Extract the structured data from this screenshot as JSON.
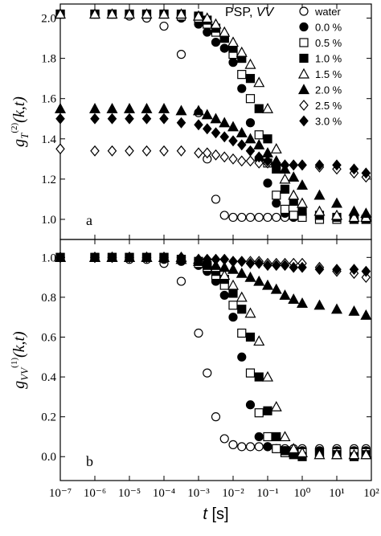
{
  "chart_data": [
    {
      "type": "scatter",
      "annotation": "a",
      "xscale": "log",
      "ylabel": {
        "base": "g",
        "sup": "(2)",
        "sub": "T",
        "args": "(k,t)"
      },
      "legend_title": "PSP, ",
      "legend_title_italic": "VV",
      "legend": "upper right",
      "xlim": [
        1e-07,
        100
      ],
      "ylim": [
        0.9,
        2.07
      ],
      "yticks": [
        {
          "value": 1,
          "label": "1.0"
        },
        1.2,
        1.4,
        1.6,
        1.8,
        {
          "value": 2,
          "label": "2.0"
        }
      ],
      "x": [
        1e-07,
        1e-06,
        3.16e-06,
        1e-05,
        3.16e-05,
        0.0001,
        0.000316,
        0.001,
        0.00178,
        0.00316,
        0.00562,
        0.01,
        0.0178,
        0.0316,
        0.0562,
        0.1,
        0.178,
        0.316,
        0.562,
        1,
        3.16,
        10,
        31.6,
        70
      ],
      "series": [
        {
          "name": "water",
          "marker": "circle",
          "filled": false,
          "color": "#000000",
          "values": [
            2.02,
            2.02,
            2.02,
            2.01,
            2.0,
            1.96,
            1.82,
            1.53,
            1.3,
            1.1,
            1.02,
            1.01,
            1.01,
            1.01,
            1.01,
            1.01,
            1.01,
            1.01,
            1.01,
            1.01,
            1.01,
            1.01,
            1.01,
            1.01
          ]
        },
        {
          "name": "0.0 %",
          "marker": "circle",
          "filled": true,
          "color": "#000000",
          "values": [
            2.02,
            2.02,
            2.02,
            2.02,
            2.02,
            2.02,
            2.0,
            1.97,
            1.93,
            1.88,
            1.85,
            1.78,
            1.65,
            1.48,
            1.3,
            1.18,
            1.08,
            1.03,
            1.01,
            1.01,
            1.0,
            1.0,
            1.0,
            1.0
          ]
        },
        {
          "name": "0.5 %",
          "marker": "square",
          "filled": false,
          "color": "#000000",
          "values": [
            2.02,
            2.02,
            2.02,
            2.02,
            2.02,
            2.02,
            2.01,
            2.0,
            1.97,
            1.93,
            1.9,
            1.82,
            1.72,
            1.6,
            1.42,
            1.28,
            1.12,
            1.05,
            1.02,
            1.01,
            1.0,
            1.0,
            1.0,
            1.0
          ]
        },
        {
          "name": "1.0 %",
          "marker": "square",
          "filled": true,
          "color": "#000000",
          "values": [
            2.02,
            2.02,
            2.02,
            2.02,
            2.02,
            2.02,
            2.02,
            2.01,
            1.99,
            1.95,
            1.9,
            1.85,
            1.8,
            1.7,
            1.55,
            1.4,
            1.25,
            1.15,
            1.09,
            1.04,
            1.02,
            1.01,
            1.0,
            1.0
          ]
        },
        {
          "name": "1.5 %",
          "marker": "triangle",
          "filled": false,
          "color": "#000000",
          "values": [
            2.02,
            2.02,
            2.02,
            2.02,
            2.02,
            2.02,
            2.02,
            2.01,
            2.0,
            1.97,
            1.93,
            1.88,
            1.83,
            1.77,
            1.68,
            1.55,
            1.35,
            1.2,
            1.12,
            1.08,
            1.04,
            1.02,
            1.01,
            1.01
          ]
        },
        {
          "name": "2.0 %",
          "marker": "triangle",
          "filled": true,
          "color": "#000000",
          "values": [
            1.55,
            1.55,
            1.55,
            1.55,
            1.55,
            1.55,
            1.54,
            1.54,
            1.52,
            1.5,
            1.48,
            1.46,
            1.43,
            1.4,
            1.37,
            1.33,
            1.29,
            1.25,
            1.21,
            1.17,
            1.12,
            1.08,
            1.04,
            1.03
          ]
        },
        {
          "name": "2.5 %",
          "marker": "diamond",
          "filled": false,
          "color": "#000000",
          "values": [
            1.35,
            1.34,
            1.34,
            1.34,
            1.34,
            1.34,
            1.34,
            1.33,
            1.33,
            1.32,
            1.31,
            1.3,
            1.29,
            1.29,
            1.28,
            1.28,
            1.28,
            1.27,
            1.27,
            1.27,
            1.26,
            1.25,
            1.23,
            1.21
          ]
        },
        {
          "name": "3.0 %",
          "marker": "diamond",
          "filled": true,
          "color": "#000000",
          "values": [
            1.5,
            1.5,
            1.5,
            1.5,
            1.5,
            1.5,
            1.48,
            1.47,
            1.45,
            1.43,
            1.41,
            1.39,
            1.37,
            1.34,
            1.31,
            1.29,
            1.28,
            1.27,
            1.27,
            1.27,
            1.27,
            1.27,
            1.25,
            1.23
          ]
        }
      ]
    },
    {
      "type": "scatter",
      "annotation": "b",
      "xscale": "log",
      "ylabel": {
        "base": "g",
        "sup": "(1)",
        "sub": "VV",
        "args": "(k,t)"
      },
      "xlabel": "t",
      "xlabel_unit": " [s]",
      "xlim": [
        1e-07,
        100
      ],
      "ylim": [
        -0.12,
        1.09
      ],
      "xticks": [
        {
          "value": 1e-07,
          "label": "10⁻⁷"
        },
        {
          "value": 1e-06,
          "label": "10⁻⁶"
        },
        {
          "value": 1e-05,
          "label": "10⁻⁵"
        },
        {
          "value": 0.0001,
          "label": "10⁻⁴"
        },
        {
          "value": 0.001,
          "label": "10⁻³"
        },
        {
          "value": 0.01,
          "label": "10⁻²"
        },
        {
          "value": 0.1,
          "label": "10⁻¹"
        },
        {
          "value": 1,
          "label": "10⁰"
        },
        {
          "value": 10,
          "label": "10¹"
        },
        {
          "value": 100,
          "label": "10²"
        }
      ],
      "yticks": [
        {
          "value": 0,
          "label": "0.0"
        },
        0.2,
        0.4,
        0.6,
        0.8,
        {
          "value": 1,
          "label": "1.0"
        }
      ],
      "x": [
        1e-07,
        1e-06,
        3.16e-06,
        1e-05,
        3.16e-05,
        0.0001,
        0.000316,
        0.001,
        0.00178,
        0.00316,
        0.00562,
        0.01,
        0.0178,
        0.0316,
        0.0562,
        0.1,
        0.178,
        0.316,
        0.562,
        1,
        3.16,
        10,
        31.6,
        70
      ],
      "series": [
        {
          "name": "water",
          "marker": "circle",
          "filled": false,
          "color": "#000000",
          "values": [
            1.0,
            1.0,
            1.0,
            0.99,
            0.99,
            0.97,
            0.88,
            0.62,
            0.42,
            0.2,
            0.09,
            0.06,
            0.05,
            0.05,
            0.05,
            0.05,
            0.04,
            0.04,
            0.04,
            0.04,
            0.04,
            0.04,
            0.04,
            0.04
          ]
        },
        {
          "name": "0.0 %",
          "marker": "circle",
          "filled": true,
          "color": "#000000",
          "values": [
            1.0,
            1.0,
            1.0,
            1.0,
            1.0,
            0.99,
            0.98,
            0.96,
            0.93,
            0.88,
            0.81,
            0.7,
            0.5,
            0.26,
            0.1,
            0.05,
            0.04,
            0.03,
            0.03,
            0.03,
            0.03,
            0.03,
            0.03,
            0.03
          ]
        },
        {
          "name": "0.5 %",
          "marker": "square",
          "filled": false,
          "color": "#000000",
          "values": [
            1.0,
            1.0,
            1.0,
            1.0,
            1.0,
            1.0,
            0.99,
            0.97,
            0.95,
            0.91,
            0.86,
            0.76,
            0.62,
            0.42,
            0.22,
            0.1,
            0.04,
            0.02,
            0.02,
            0.02,
            0.02,
            0.02,
            0.02,
            0.02
          ]
        },
        {
          "name": "1.0 %",
          "marker": "square",
          "filled": true,
          "color": "#000000",
          "values": [
            1.0,
            1.0,
            1.0,
            1.0,
            1.0,
            1.0,
            0.99,
            0.98,
            0.96,
            0.93,
            0.89,
            0.82,
            0.74,
            0.6,
            0.4,
            0.23,
            0.1,
            0.03,
            0.01,
            0.0,
            0.02,
            0.01,
            0.0,
            0.01
          ]
        },
        {
          "name": "1.5 %",
          "marker": "triangle",
          "filled": false,
          "color": "#000000",
          "values": [
            1.0,
            1.0,
            1.0,
            1.0,
            1.0,
            1.0,
            1.0,
            0.99,
            0.97,
            0.95,
            0.91,
            0.86,
            0.8,
            0.72,
            0.58,
            0.4,
            0.25,
            0.1,
            0.04,
            0.02,
            0.01,
            0.01,
            0.01,
            0.01
          ]
        },
        {
          "name": "2.0 %",
          "marker": "triangle",
          "filled": true,
          "color": "#000000",
          "values": [
            1.0,
            1.0,
            1.0,
            1.0,
            1.0,
            1.0,
            0.99,
            0.98,
            0.97,
            0.96,
            0.95,
            0.94,
            0.92,
            0.9,
            0.88,
            0.86,
            0.84,
            0.81,
            0.79,
            0.77,
            0.76,
            0.74,
            0.73,
            0.71
          ]
        },
        {
          "name": "2.5 %",
          "marker": "diamond",
          "filled": false,
          "color": "#000000",
          "values": [
            1.0,
            1.0,
            1.0,
            1.0,
            1.0,
            1.0,
            1.0,
            0.99,
            0.99,
            0.99,
            0.99,
            0.98,
            0.98,
            0.98,
            0.98,
            0.97,
            0.97,
            0.97,
            0.97,
            0.97,
            0.95,
            0.93,
            0.92,
            0.9
          ]
        },
        {
          "name": "3.0 %",
          "marker": "diamond",
          "filled": true,
          "color": "#000000",
          "values": [
            1.0,
            1.0,
            1.0,
            1.0,
            1.0,
            1.0,
            1.0,
            0.99,
            0.99,
            0.99,
            0.99,
            0.98,
            0.98,
            0.97,
            0.97,
            0.96,
            0.96,
            0.96,
            0.95,
            0.95,
            0.94,
            0.94,
            0.94,
            0.93
          ]
        }
      ]
    }
  ]
}
